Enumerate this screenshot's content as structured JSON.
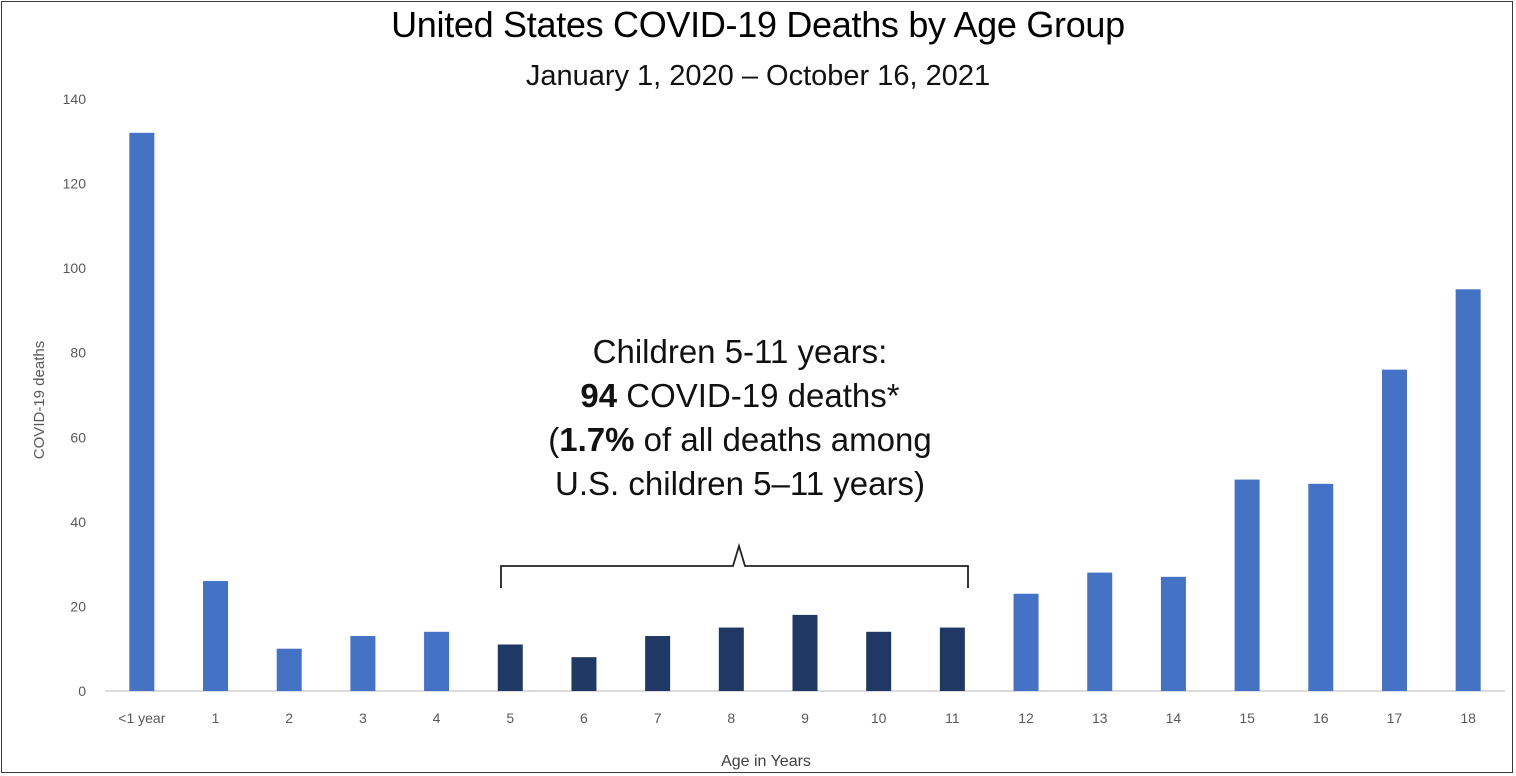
{
  "chart_data": {
    "type": "bar",
    "title": "United States COVID-19 Deaths by Age Group",
    "subtitle": "January 1, 2020 – October 16, 2021",
    "xlabel": "Age in Years",
    "ylabel": "COVID-19 deaths",
    "ylim": [
      0,
      140
    ],
    "yticks": [
      0,
      20,
      40,
      60,
      80,
      100,
      120,
      140
    ],
    "grid": false,
    "categories": [
      "<1 year",
      "1",
      "2",
      "3",
      "4",
      "5",
      "6",
      "7",
      "8",
      "9",
      "10",
      "11",
      "12",
      "13",
      "14",
      "15",
      "16",
      "17",
      "18"
    ],
    "values": [
      132,
      26,
      10,
      13,
      14,
      11,
      8,
      13,
      15,
      18,
      14,
      15,
      23,
      28,
      27,
      50,
      49,
      76,
      95
    ],
    "colors": {
      "default": "#4472c4",
      "highlight": "#1f3864"
    },
    "highlight_range": [
      "5",
      "11"
    ],
    "annotation": {
      "line1": "Children 5-11 years:",
      "line2_bold": "94",
      "line2_rest": " COVID-19 deaths*",
      "line3_open": "(",
      "line3_bold": "1.7%",
      "line3_rest": " of all deaths among",
      "line4": "U.S. children 5–11 years)"
    }
  }
}
